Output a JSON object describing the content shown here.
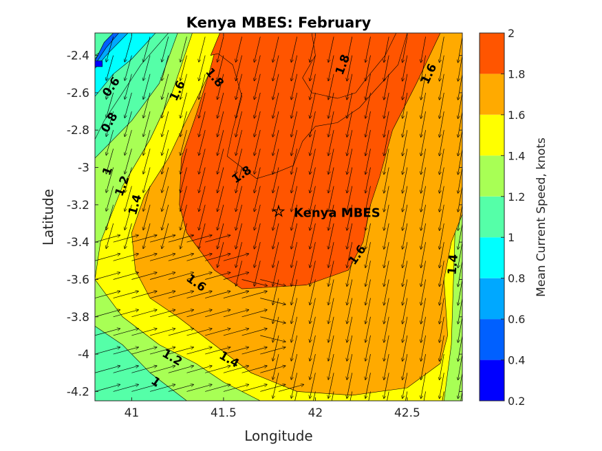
{
  "chart_data": {
    "type": "contourf_quiver",
    "title": "Kenya MBES: February",
    "xlabel": "Longitude",
    "ylabel": "Latitude",
    "xlim": [
      40.8,
      42.8
    ],
    "ylim": [
      -4.25,
      -2.28
    ],
    "x_ticks": [
      {
        "value": 41,
        "label": "41"
      },
      {
        "value": 41.5,
        "label": "41.5"
      },
      {
        "value": 42,
        "label": "42"
      },
      {
        "value": 42.5,
        "label": "42.5"
      }
    ],
    "y_ticks": [
      {
        "value": -2.4,
        "label": "-2.4"
      },
      {
        "value": -2.6,
        "label": "-2.6"
      },
      {
        "value": -2.8,
        "label": "-2.8"
      },
      {
        "value": -3.0,
        "label": "-3"
      },
      {
        "value": -3.2,
        "label": "-3.2"
      },
      {
        "value": -3.4,
        "label": "-3.4"
      },
      {
        "value": -3.6,
        "label": "-3.6"
      },
      {
        "value": -3.8,
        "label": "-3.8"
      },
      {
        "value": -4.0,
        "label": "-4"
      },
      {
        "value": -4.2,
        "label": "-4.2"
      }
    ],
    "colorbar": {
      "label": "Mean Current Speed, knots",
      "range": [
        0.2,
        2.0
      ],
      "levels": [
        0.2,
        0.4,
        0.6,
        0.8,
        1.0,
        1.2,
        1.4,
        1.6,
        1.8,
        2.0
      ],
      "tick_labels": [
        "0.2",
        "0.4",
        "0.6",
        "0.8",
        "1",
        "1.2",
        "1.4",
        "1.6",
        "1.8",
        "2"
      ],
      "colors": [
        "#0000ff",
        "#0060ff",
        "#00a8ff",
        "#00ffff",
        "#55ffa8",
        "#a8ff55",
        "#ffff00",
        "#ffaa00",
        "#ff5500"
      ]
    },
    "contour_regions": [
      {
        "level": 1.2,
        "points": [
          [
            40.8,
            -2.95
          ],
          [
            41.0,
            -2.75
          ],
          [
            41.15,
            -2.55
          ],
          [
            41.25,
            -2.28
          ],
          [
            42.8,
            -2.28
          ],
          [
            42.8,
            -4.25
          ],
          [
            41.3,
            -4.25
          ],
          [
            41.1,
            -4.1
          ],
          [
            40.95,
            -3.95
          ],
          [
            40.8,
            -3.85
          ]
        ]
      },
      {
        "level": 1.4,
        "points": [
          [
            40.8,
            -3.6
          ],
          [
            40.83,
            -3.4
          ],
          [
            40.95,
            -3.1
          ],
          [
            41.1,
            -2.85
          ],
          [
            41.22,
            -2.6
          ],
          [
            41.33,
            -2.28
          ],
          [
            42.8,
            -2.28
          ],
          [
            42.8,
            -3.05
          ],
          [
            42.76,
            -3.35
          ],
          [
            42.74,
            -3.95
          ],
          [
            42.7,
            -4.25
          ],
          [
            41.7,
            -4.25
          ],
          [
            41.5,
            -4.15
          ],
          [
            41.35,
            -4.05
          ],
          [
            41.15,
            -3.95
          ],
          [
            40.95,
            -3.8
          ]
        ]
      },
      {
        "level": 1.6,
        "points": [
          [
            41.02,
            -3.55
          ],
          [
            41.0,
            -3.35
          ],
          [
            41.07,
            -3.15
          ],
          [
            41.2,
            -2.95
          ],
          [
            41.32,
            -2.7
          ],
          [
            41.42,
            -2.5
          ],
          [
            41.5,
            -2.28
          ],
          [
            42.8,
            -2.28
          ],
          [
            42.8,
            -3.25
          ],
          [
            42.74,
            -3.4
          ],
          [
            42.7,
            -3.6
          ],
          [
            42.72,
            -3.9
          ],
          [
            42.68,
            -4.05
          ],
          [
            42.5,
            -4.18
          ],
          [
            42.2,
            -4.22
          ],
          [
            41.9,
            -4.2
          ],
          [
            41.65,
            -4.1
          ],
          [
            41.45,
            -3.95
          ],
          [
            41.25,
            -3.8
          ],
          [
            41.1,
            -3.7
          ]
        ]
      },
      {
        "level": 1.8,
        "points": [
          [
            41.26,
            -3.2
          ],
          [
            41.27,
            -2.95
          ],
          [
            41.35,
            -2.72
          ],
          [
            41.42,
            -2.5
          ],
          [
            41.48,
            -2.28
          ],
          [
            42.68,
            -2.28
          ],
          [
            42.55,
            -2.55
          ],
          [
            42.42,
            -2.8
          ],
          [
            42.35,
            -3.05
          ],
          [
            42.3,
            -3.2
          ],
          [
            42.26,
            -3.4
          ],
          [
            42.18,
            -3.55
          ],
          [
            41.95,
            -3.63
          ],
          [
            41.6,
            -3.65
          ],
          [
            41.45,
            -3.55
          ],
          [
            41.3,
            -3.35
          ]
        ]
      },
      {
        "level": 2.0,
        "points": [
          [
            41.43,
            -2.4
          ],
          [
            41.48,
            -2.28
          ],
          [
            41.98,
            -2.28
          ],
          [
            42.0,
            -2.4
          ],
          [
            41.93,
            -2.52
          ],
          [
            41.98,
            -2.6
          ],
          [
            42.12,
            -2.63
          ],
          [
            42.22,
            -2.6
          ],
          [
            42.28,
            -2.52
          ],
          [
            42.38,
            -2.4
          ],
          [
            42.44,
            -2.28
          ],
          [
            42.5,
            -2.28
          ],
          [
            42.45,
            -2.45
          ],
          [
            42.33,
            -2.58
          ],
          [
            42.24,
            -2.68
          ],
          [
            42.12,
            -2.76
          ],
          [
            42.0,
            -2.78
          ],
          [
            41.93,
            -2.86
          ],
          [
            41.88,
            -2.99
          ],
          [
            41.78,
            -3.03
          ],
          [
            41.68,
            -3.06
          ],
          [
            41.64,
            -3.03
          ],
          [
            41.52,
            -2.94
          ],
          [
            41.55,
            -2.8
          ],
          [
            41.6,
            -2.62
          ],
          [
            41.55,
            -2.45
          ],
          [
            41.47,
            -2.39
          ]
        ]
      }
    ],
    "low_region_extras": [
      {
        "level": 1.0,
        "points": [
          [
            40.8,
            -2.4
          ],
          [
            41.0,
            -2.28
          ],
          [
            41.2,
            -2.28
          ],
          [
            41.05,
            -2.45
          ],
          [
            40.95,
            -2.6
          ],
          [
            40.85,
            -2.75
          ],
          [
            40.8,
            -2.85
          ]
        ]
      },
      {
        "level": 0.8,
        "points": [
          [
            40.8,
            -2.45
          ],
          [
            40.95,
            -2.28
          ],
          [
            41.13,
            -2.28
          ],
          [
            41.0,
            -2.42
          ],
          [
            40.9,
            -2.5
          ],
          [
            40.8,
            -2.62
          ]
        ]
      },
      {
        "level": 0.6,
        "points": [
          [
            40.8,
            -2.42
          ],
          [
            40.9,
            -2.28
          ],
          [
            40.98,
            -2.28
          ],
          [
            40.88,
            -2.38
          ],
          [
            40.8,
            -2.47
          ]
        ]
      },
      {
        "level": 0.4,
        "points": [
          [
            40.8,
            -2.43
          ],
          [
            40.85,
            -2.33
          ],
          [
            40.9,
            -2.28
          ],
          [
            40.93,
            -2.28
          ],
          [
            40.86,
            -2.36
          ],
          [
            40.8,
            -2.45
          ]
        ]
      },
      {
        "level": 0.2,
        "points": [
          [
            40.8,
            -2.43
          ],
          [
            40.84,
            -2.43
          ],
          [
            40.84,
            -2.46
          ],
          [
            40.8,
            -2.46
          ]
        ]
      }
    ],
    "contour_labels": [
      {
        "text": "0.6",
        "x": 40.89,
        "y": -2.57,
        "angle": -55
      },
      {
        "text": "0.8",
        "x": 40.88,
        "y": -2.76,
        "angle": -60
      },
      {
        "text": "1",
        "x": 40.87,
        "y": -3.02,
        "angle": -70
      },
      {
        "text": "1.2",
        "x": 40.95,
        "y": -3.1,
        "angle": -70
      },
      {
        "text": "1.4",
        "x": 41.02,
        "y": -3.2,
        "angle": -75
      },
      {
        "text": "1.6",
        "x": 41.25,
        "y": -2.59,
        "angle": -65
      },
      {
        "text": "1.8",
        "x": 41.45,
        "y": -2.52,
        "angle": 50
      },
      {
        "text": "1.8",
        "x": 41.6,
        "y": -3.04,
        "angle": -35
      },
      {
        "text": "1.8",
        "x": 42.15,
        "y": -2.45,
        "angle": -70
      },
      {
        "text": "1.6",
        "x": 42.62,
        "y": -2.5,
        "angle": -65
      },
      {
        "text": "1.6",
        "x": 42.23,
        "y": -3.47,
        "angle": -55
      },
      {
        "text": "1.4",
        "x": 42.75,
        "y": -3.52,
        "angle": -85
      },
      {
        "text": "1.6",
        "x": 41.35,
        "y": -3.62,
        "angle": 35
      },
      {
        "text": "1.4",
        "x": 41.53,
        "y": -4.03,
        "angle": 30
      },
      {
        "text": "1.2",
        "x": 41.22,
        "y": -4.02,
        "angle": 30
      },
      {
        "text": "1",
        "x": 41.13,
        "y": -4.15,
        "angle": 35
      }
    ],
    "marker": {
      "label": "Kenya MBES",
      "x": 41.8,
      "y": -3.24,
      "symbol": "☆"
    },
    "vector_field": {
      "x_start": 40.8,
      "x_step": 0.1,
      "nx": 21,
      "y_start": -2.3,
      "y_step": -0.1,
      "ny": 20,
      "description": "Arrows trend south-southwest over the shelf, bending northeast near the southwest coast."
    }
  }
}
